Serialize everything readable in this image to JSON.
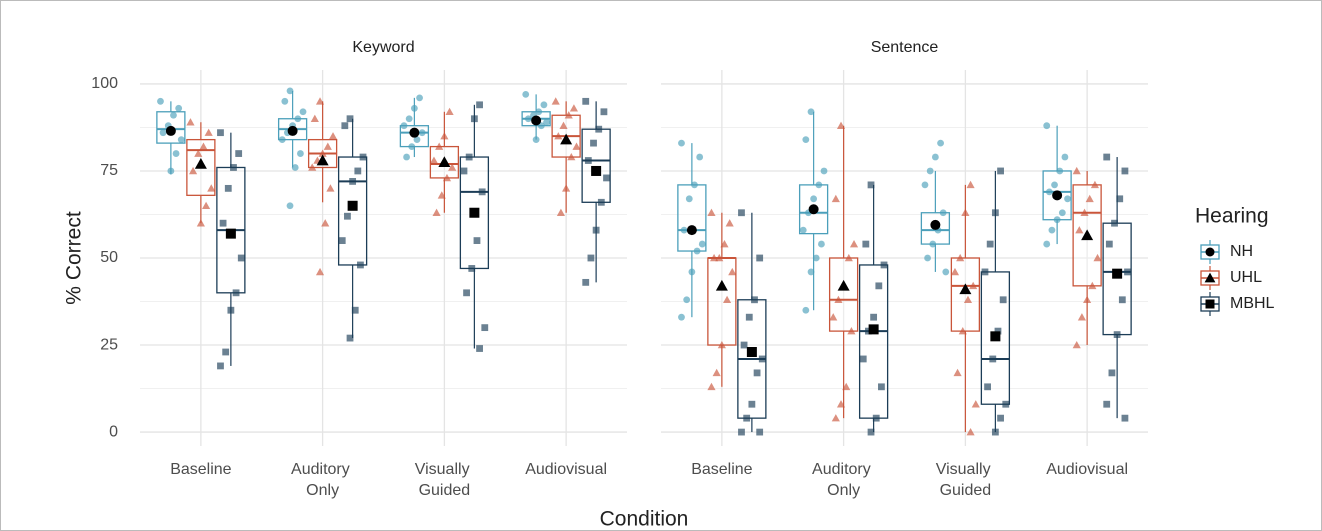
{
  "chart_data": {
    "type": "boxplot",
    "ylabel": "% Correct",
    "xlabel": "Condition",
    "legend_title": "Hearing",
    "categories": [
      "Baseline",
      "Auditory Only",
      "Visually Guided",
      "Audiovisual"
    ],
    "series": [
      {
        "name": "NH",
        "color": "#4b9fba",
        "marker": "circle"
      },
      {
        "name": "UHL",
        "color": "#c9553a",
        "marker": "triangle"
      },
      {
        "name": "MBHL",
        "color": "#1c3d57",
        "marker": "square"
      }
    ],
    "ylim": [
      -4,
      104
    ],
    "yticks": [
      0,
      25,
      50,
      75,
      100
    ],
    "grid": true,
    "legend": "right",
    "facets": [
      {
        "title": "Keyword",
        "data": [
          [
            {
              "low": 74,
              "q1": 83,
              "median": 87,
              "q3": 92,
              "high": 95,
              "mean": 86.5,
              "points": [
                95,
                93,
                91,
                88,
                86,
                84,
                80,
                75
              ]
            },
            {
              "low": 76,
              "q1": 84,
              "median": 87,
              "q3": 90,
              "high": 98,
              "mean": 86.5,
              "points": [
                98,
                95,
                92,
                90,
                88,
                86,
                84,
                80,
                76,
                65
              ]
            },
            {
              "low": 79,
              "q1": 82,
              "median": 86,
              "q3": 88,
              "high": 96,
              "mean": 86,
              "points": [
                96,
                93,
                90,
                88,
                86,
                84,
                82,
                79
              ]
            },
            {
              "low": 84,
              "q1": 88,
              "median": 90,
              "q3": 92,
              "high": 97,
              "mean": 89.5,
              "points": [
                97,
                94,
                92,
                91,
                90,
                89,
                88,
                84
              ]
            }
          ],
          [
            {
              "low": 60,
              "q1": 68,
              "median": 81,
              "q3": 84,
              "high": 89,
              "mean": 77,
              "points": [
                89,
                86,
                82,
                80,
                75,
                70,
                65,
                60
              ]
            },
            {
              "low": 66,
              "q1": 76,
              "median": 80,
              "q3": 84,
              "high": 95,
              "mean": 78,
              "points": [
                95,
                90,
                85,
                82,
                80,
                78,
                76,
                70,
                60,
                46
              ]
            },
            {
              "low": 63,
              "q1": 73,
              "median": 77,
              "q3": 82,
              "high": 92,
              "mean": 77.5,
              "points": [
                92,
                85,
                82,
                78,
                76,
                73,
                68,
                63
              ]
            },
            {
              "low": 63,
              "q1": 79,
              "median": 85,
              "q3": 91,
              "high": 95,
              "mean": 84,
              "points": [
                95,
                93,
                91,
                88,
                85,
                82,
                79,
                70,
                63
              ]
            }
          ],
          [
            {
              "low": 19,
              "q1": 40,
              "median": 58,
              "q3": 76,
              "high": 86,
              "mean": 57,
              "points": [
                86,
                80,
                76,
                70,
                60,
                50,
                40,
                35,
                23,
                19
              ]
            },
            {
              "low": 27,
              "q1": 48,
              "median": 72,
              "q3": 79,
              "high": 90,
              "mean": 65,
              "points": [
                90,
                88,
                79,
                75,
                72,
                62,
                55,
                48,
                35,
                27
              ]
            },
            {
              "low": 24,
              "q1": 47,
              "median": 69,
              "q3": 79,
              "high": 94,
              "mean": 63,
              "points": [
                94,
                90,
                79,
                75,
                69,
                55,
                47,
                40,
                30,
                24
              ]
            },
            {
              "low": 43,
              "q1": 66,
              "median": 78,
              "q3": 87,
              "high": 95,
              "mean": 75,
              "points": [
                95,
                92,
                87,
                83,
                78,
                73,
                66,
                58,
                50,
                43
              ]
            }
          ]
        ]
      },
      {
        "title": "Sentence",
        "data": [
          [
            {
              "low": 33,
              "q1": 52,
              "median": 58,
              "q3": 71,
              "high": 83,
              "mean": 58,
              "points": [
                83,
                79,
                71,
                67,
                58,
                54,
                52,
                46,
                38,
                33
              ]
            },
            {
              "low": 35,
              "q1": 57,
              "median": 63,
              "q3": 71,
              "high": 92,
              "mean": 64,
              "points": [
                92,
                84,
                75,
                71,
                67,
                63,
                58,
                54,
                50,
                46,
                35
              ]
            },
            {
              "low": 46,
              "q1": 54,
              "median": 58,
              "q3": 63,
              "high": 75,
              "mean": 59.5,
              "points": [
                83,
                79,
                75,
                71,
                63,
                58,
                54,
                50,
                46
              ]
            },
            {
              "low": 54,
              "q1": 61,
              "median": 69,
              "q3": 75,
              "high": 88,
              "mean": 68,
              "points": [
                88,
                79,
                75,
                71,
                69,
                67,
                63,
                61,
                58,
                54
              ]
            }
          ],
          [
            {
              "low": 13,
              "q1": 25,
              "median": 50,
              "q3": 50,
              "high": 63,
              "mean": 42,
              "points": [
                63,
                60,
                54,
                50,
                50,
                46,
                38,
                25,
                17,
                13
              ]
            },
            {
              "low": 4,
              "q1": 29,
              "median": 38,
              "q3": 50,
              "high": 88,
              "mean": 42,
              "points": [
                88,
                67,
                54,
                50,
                42,
                38,
                33,
                29,
                13,
                8,
                4
              ]
            },
            {
              "low": 0,
              "q1": 29,
              "median": 42,
              "q3": 50,
              "high": 71,
              "mean": 41,
              "points": [
                71,
                63,
                50,
                46,
                42,
                38,
                29,
                17,
                8,
                0
              ]
            },
            {
              "low": 25,
              "q1": 42,
              "median": 63,
              "q3": 71,
              "high": 75,
              "mean": 56.5,
              "points": [
                75,
                71,
                67,
                63,
                58,
                50,
                42,
                38,
                33,
                25
              ]
            }
          ],
          [
            {
              "low": 0,
              "q1": 4,
              "median": 21,
              "q3": 38,
              "high": 63,
              "mean": 23,
              "points": [
                63,
                50,
                38,
                33,
                25,
                21,
                17,
                8,
                4,
                0,
                0
              ]
            },
            {
              "low": 0,
              "q1": 4,
              "median": 29,
              "q3": 48,
              "high": 71,
              "mean": 29.5,
              "points": [
                71,
                54,
                48,
                42,
                33,
                29,
                21,
                13,
                4,
                0
              ]
            },
            {
              "low": 0,
              "q1": 8,
              "median": 21,
              "q3": 46,
              "high": 75,
              "mean": 27.5,
              "points": [
                75,
                63,
                54,
                46,
                38,
                29,
                21,
                13,
                8,
                4,
                0
              ]
            },
            {
              "low": 4,
              "q1": 28,
              "median": 46,
              "q3": 60,
              "high": 79,
              "mean": 45.5,
              "points": [
                79,
                75,
                67,
                60,
                54,
                46,
                38,
                28,
                17,
                8,
                4
              ]
            }
          ]
        ]
      }
    ]
  }
}
